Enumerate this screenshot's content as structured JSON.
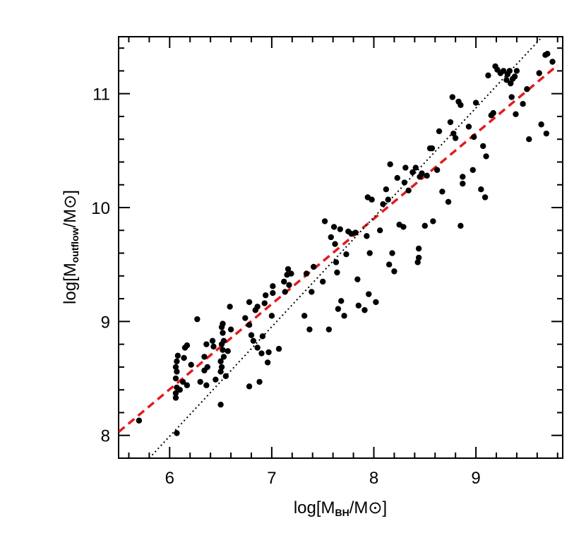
{
  "chart_data": {
    "type": "scatter",
    "title": "",
    "xlabel": {
      "prefix": "log[M",
      "sub": "BH",
      "suffix": "/M⊙]"
    },
    "ylabel": {
      "prefix": "log[M",
      "sub": "outflow",
      "suffix": "/M⊙]"
    },
    "xlim": [
      5.5,
      9.85
    ],
    "ylim": [
      7.8,
      11.5
    ],
    "xticks": [
      6,
      7,
      8,
      9
    ],
    "yticks": [
      8,
      9,
      10,
      11
    ],
    "xtick_labels": [
      "6",
      "7",
      "8",
      "9"
    ],
    "ytick_labels": [
      "8",
      "9",
      "10",
      "11"
    ],
    "grid": false,
    "colors": {
      "points": "#000000",
      "fit_line": "#e41a1c",
      "one_to_one_line": "#000000"
    },
    "lines": [
      {
        "style": "dashed",
        "color": "#e41a1c",
        "x": [
          5.5,
          9.8
        ],
        "y": [
          8.03,
          11.25
        ]
      },
      {
        "style": "dotted",
        "color": "#000000",
        "x": [
          5.8,
          9.65
        ],
        "y": [
          7.8,
          11.5
        ]
      }
    ],
    "points": [
      [
        5.7,
        8.13
      ],
      [
        6.07,
        8.02
      ],
      [
        6.06,
        8.33
      ],
      [
        6.06,
        8.37
      ],
      [
        6.07,
        8.42
      ],
      [
        6.06,
        8.5
      ],
      [
        6.07,
        8.56
      ],
      [
        6.06,
        8.6
      ],
      [
        6.07,
        8.65
      ],
      [
        6.08,
        8.7
      ],
      [
        6.1,
        8.4
      ],
      [
        6.13,
        8.47
      ],
      [
        6.17,
        8.44
      ],
      [
        6.14,
        8.68
      ],
      [
        6.15,
        8.77
      ],
      [
        6.17,
        8.79
      ],
      [
        6.21,
        8.62
      ],
      [
        6.27,
        9.02
      ],
      [
        6.3,
        8.47
      ],
      [
        6.34,
        8.57
      ],
      [
        6.36,
        8.44
      ],
      [
        6.34,
        8.69
      ],
      [
        6.37,
        8.6
      ],
      [
        6.36,
        8.8
      ],
      [
        6.42,
        8.83
      ],
      [
        6.43,
        8.78
      ],
      [
        6.45,
        8.49
      ],
      [
        6.5,
        8.27
      ],
      [
        6.5,
        8.56
      ],
      [
        6.51,
        8.6
      ],
      [
        6.5,
        8.65
      ],
      [
        6.53,
        8.69
      ],
      [
        6.52,
        8.75
      ],
      [
        6.51,
        8.8
      ],
      [
        6.53,
        8.83
      ],
      [
        6.52,
        8.9
      ],
      [
        6.51,
        8.95
      ],
      [
        6.52,
        8.98
      ],
      [
        6.55,
        8.52
      ],
      [
        6.57,
        8.74
      ],
      [
        6.59,
        9.13
      ],
      [
        6.6,
        8.93
      ],
      [
        6.74,
        9.03
      ],
      [
        6.78,
        8.43
      ],
      [
        6.78,
        8.97
      ],
      [
        6.78,
        9.17
      ],
      [
        6.8,
        8.88
      ],
      [
        6.82,
        8.83
      ],
      [
        6.84,
        9.1
      ],
      [
        6.86,
        8.77
      ],
      [
        6.86,
        9.13
      ],
      [
        6.88,
        8.47
      ],
      [
        6.9,
        8.72
      ],
      [
        6.91,
        8.87
      ],
      [
        6.93,
        9.16
      ],
      [
        6.94,
        9.23
      ],
      [
        6.96,
        8.64
      ],
      [
        6.97,
        8.73
      ],
      [
        7.0,
        9.05
      ],
      [
        7.01,
        9.25
      ],
      [
        7.01,
        9.31
      ],
      [
        7.07,
        8.76
      ],
      [
        7.12,
        9.35
      ],
      [
        7.13,
        9.26
      ],
      [
        7.15,
        9.41
      ],
      [
        7.16,
        9.46
      ],
      [
        7.17,
        9.32
      ],
      [
        7.19,
        9.42
      ],
      [
        7.32,
        9.05
      ],
      [
        7.34,
        9.42
      ],
      [
        7.37,
        8.93
      ],
      [
        7.39,
        9.26
      ],
      [
        7.41,
        9.48
      ],
      [
        7.5,
        9.35
      ],
      [
        7.52,
        9.88
      ],
      [
        7.56,
        8.93
      ],
      [
        7.58,
        9.74
      ],
      [
        7.61,
        9.83
      ],
      [
        7.62,
        9.68
      ],
      [
        7.63,
        9.52
      ],
      [
        7.64,
        9.43
      ],
      [
        7.65,
        9.11
      ],
      [
        7.67,
        9.81
      ],
      [
        7.68,
        9.18
      ],
      [
        7.71,
        9.05
      ],
      [
        7.73,
        9.59
      ],
      [
        7.75,
        9.79
      ],
      [
        7.78,
        9.77
      ],
      [
        7.82,
        9.78
      ],
      [
        7.84,
        9.37
      ],
      [
        7.85,
        9.14
      ],
      [
        7.91,
        9.1
      ],
      [
        7.93,
        9.75
      ],
      [
        7.94,
        10.09
      ],
      [
        7.95,
        9.24
      ],
      [
        7.96,
        9.6
      ],
      [
        7.98,
        10.07
      ],
      [
        8.02,
        9.17
      ],
      [
        8.06,
        9.8
      ],
      [
        8.09,
        10.03
      ],
      [
        8.12,
        10.16
      ],
      [
        8.14,
        10.07
      ],
      [
        8.15,
        9.5
      ],
      [
        8.16,
        10.38
      ],
      [
        8.18,
        9.6
      ],
      [
        8.2,
        9.44
      ],
      [
        8.23,
        10.26
      ],
      [
        8.25,
        9.85
      ],
      [
        8.29,
        9.83
      ],
      [
        8.3,
        10.22
      ],
      [
        8.31,
        10.35
      ],
      [
        8.34,
        10.15
      ],
      [
        8.38,
        10.31
      ],
      [
        8.41,
        10.35
      ],
      [
        8.43,
        9.52
      ],
      [
        8.44,
        9.56
      ],
      [
        8.44,
        9.64
      ],
      [
        8.45,
        10.27
      ],
      [
        8.47,
        10.3
      ],
      [
        8.5,
        9.84
      ],
      [
        8.52,
        10.28
      ],
      [
        8.55,
        10.52
      ],
      [
        8.57,
        10.52
      ],
      [
        8.58,
        9.88
      ],
      [
        8.62,
        10.33
      ],
      [
        8.64,
        10.67
      ],
      [
        8.67,
        10.14
      ],
      [
        8.73,
        10.05
      ],
      [
        8.75,
        10.75
      ],
      [
        8.77,
        10.97
      ],
      [
        8.78,
        10.65
      ],
      [
        8.8,
        10.61
      ],
      [
        8.83,
        10.93
      ],
      [
        8.85,
        9.84
      ],
      [
        8.85,
        10.9
      ],
      [
        8.87,
        10.27
      ],
      [
        8.87,
        10.21
      ],
      [
        8.93,
        10.71
      ],
      [
        8.97,
        10.33
      ],
      [
        8.98,
        10.62
      ],
      [
        9.0,
        10.92
      ],
      [
        9.05,
        10.16
      ],
      [
        9.07,
        10.54
      ],
      [
        9.09,
        10.09
      ],
      [
        9.1,
        10.45
      ],
      [
        9.12,
        11.16
      ],
      [
        9.15,
        10.81
      ],
      [
        9.17,
        10.83
      ],
      [
        9.19,
        11.24
      ],
      [
        9.21,
        11.21
      ],
      [
        9.24,
        11.18
      ],
      [
        9.27,
        11.2
      ],
      [
        9.3,
        11.12
      ],
      [
        9.31,
        11.17
      ],
      [
        9.33,
        11.2
      ],
      [
        9.34,
        11.09
      ],
      [
        9.35,
        10.97
      ],
      [
        9.36,
        11.13
      ],
      [
        9.38,
        11.15
      ],
      [
        9.39,
        10.82
      ],
      [
        9.4,
        11.2
      ],
      [
        9.46,
        10.91
      ],
      [
        9.5,
        11.04
      ],
      [
        9.52,
        10.6
      ],
      [
        9.62,
        11.18
      ],
      [
        9.64,
        10.73
      ],
      [
        9.68,
        11.34
      ],
      [
        9.69,
        10.65
      ],
      [
        9.7,
        11.35
      ],
      [
        9.75,
        11.28
      ]
    ]
  }
}
